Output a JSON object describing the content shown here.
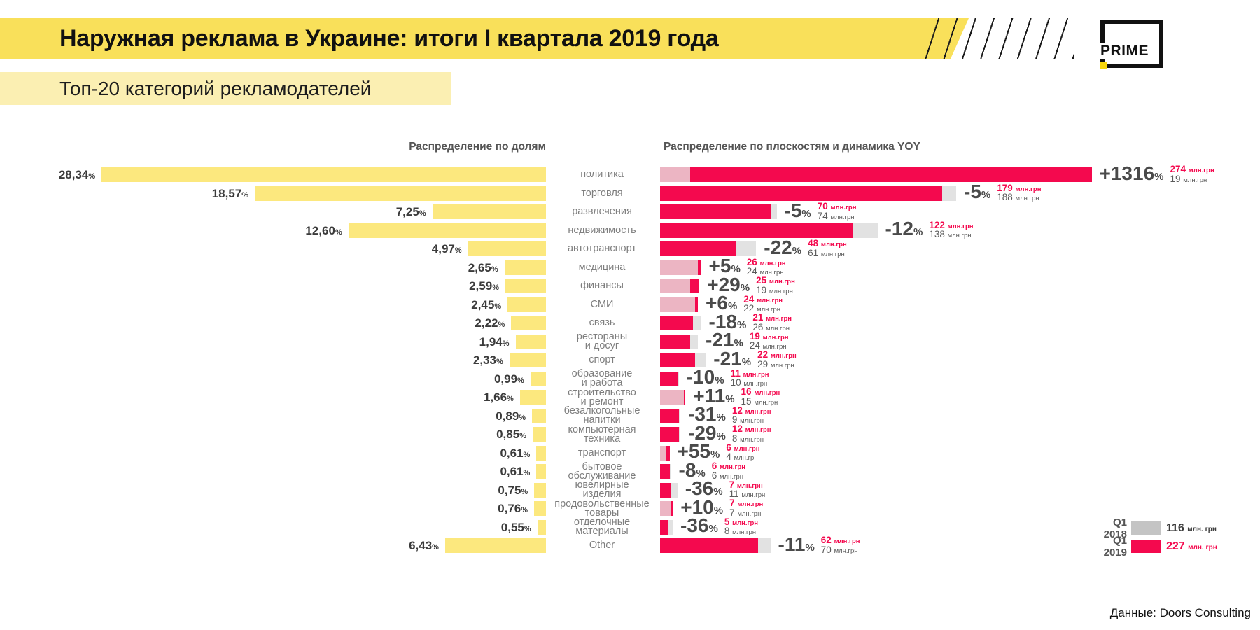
{
  "page": {
    "title": "Наружная реклама в Украине: итоги I квартала 2019 года",
    "subtitle": "Топ-20 категорий рекламодателей",
    "logo": "PRIME",
    "source": "Данные: Doors Consulting"
  },
  "left_chart": {
    "title": "Распределение по долям",
    "pct_suffix": "%"
  },
  "right_chart": {
    "title": "Распределение по плоскостям и динамика YOY",
    "pct_suffix": "%",
    "unit": "млн.грн"
  },
  "legend": {
    "items": [
      {
        "label": "Q1 2018",
        "value": "116",
        "unit": "млн. грн",
        "swatch_color": "#C4C4C4",
        "text_color": "#3d3d3d"
      },
      {
        "label": "Q1 2019",
        "value": "227",
        "unit": "млн. грн",
        "swatch_color": "#F4094E",
        "text_color": "#F4094E"
      }
    ]
  },
  "colors": {
    "yellow_bar": "#FCE87E",
    "red": "#F4094E",
    "pale_pink": "#ECB5C3",
    "gray_tail": "#E2E2E2"
  },
  "chart_data": {
    "type": "bar",
    "title": "Топ-20 категорий рекламодателей",
    "xlabel": "млн.грн / % доля",
    "legend_position": "bottom-right",
    "categories": [
      "политика",
      "торговля",
      "развлечения",
      "недвижимость",
      "автотранспорт",
      "медицина",
      "финансы",
      "СМИ",
      "связь",
      "рестораны и досуг",
      "спорт",
      "образование и работа",
      "строительство и ремонт",
      "безалкогольные напитки",
      "компьютерная техника",
      "транспорт",
      "бытовое обслуживание",
      "ювелирные изделия",
      "продовольственные товары",
      "отделочные материалы",
      "Other"
    ],
    "series": [
      {
        "name": "Доля, %",
        "values": [
          28.34,
          18.57,
          7.25,
          12.6,
          4.97,
          2.65,
          2.59,
          2.45,
          2.22,
          1.94,
          2.33,
          0.99,
          1.66,
          0.89,
          0.85,
          0.61,
          0.61,
          0.75,
          0.76,
          0.55,
          6.43
        ]
      },
      {
        "name": "Q1 2019, млн.грн",
        "values": [
          274,
          179,
          70,
          122,
          48,
          26,
          25,
          24,
          21,
          19,
          22,
          11,
          16,
          12,
          12,
          6,
          6,
          7,
          7,
          5,
          62
        ]
      },
      {
        "name": "Q1 2018, млн.грн",
        "values": [
          19,
          188,
          74,
          138,
          61,
          24,
          19,
          22,
          26,
          24,
          29,
          10,
          15,
          9,
          8,
          4,
          6,
          11,
          7,
          8,
          70
        ]
      },
      {
        "name": "Динамика YOY, %",
        "values": [
          1316,
          -5,
          -5,
          -12,
          -22,
          5,
          29,
          6,
          -18,
          -21,
          -21,
          -10,
          11,
          -31,
          -29,
          55,
          -8,
          -36,
          10,
          -36,
          -11
        ]
      }
    ],
    "rows": [
      {
        "category_lines": [
          "политика"
        ],
        "share_label": "28,34",
        "share": 28.34,
        "yoy_label": "+1316",
        "v2019": 274,
        "v2018": 19,
        "v2019_label": "274",
        "v2018_label": "19"
      },
      {
        "category_lines": [
          "торговля"
        ],
        "share_label": "18,57",
        "share": 18.57,
        "yoy_label": "-5",
        "v2019": 179,
        "v2018": 188,
        "v2019_label": "179",
        "v2018_label": "188"
      },
      {
        "category_lines": [
          "развлечения"
        ],
        "share_label": "7,25",
        "share": 7.25,
        "yoy_label": "-5",
        "v2019": 70,
        "v2018": 74,
        "v2019_label": "70",
        "v2018_label": "74"
      },
      {
        "category_lines": [
          "недвижимость"
        ],
        "share_label": "12,60",
        "share": 12.6,
        "yoy_label": "-12",
        "v2019": 122,
        "v2018": 138,
        "v2019_label": "122",
        "v2018_label": "138"
      },
      {
        "category_lines": [
          "автотранспорт"
        ],
        "share_label": "4,97",
        "share": 4.97,
        "yoy_label": "-22",
        "v2019": 48,
        "v2018": 61,
        "v2019_label": "48",
        "v2018_label": "61"
      },
      {
        "category_lines": [
          "медицина"
        ],
        "share_label": "2,65",
        "share": 2.65,
        "yoy_label": "+5",
        "v2019": 26,
        "v2018": 24,
        "v2019_label": "26",
        "v2018_label": "24"
      },
      {
        "category_lines": [
          "финансы"
        ],
        "share_label": "2,59",
        "share": 2.59,
        "yoy_label": "+29",
        "v2019": 25,
        "v2018": 19,
        "v2019_label": "25",
        "v2018_label": "19"
      },
      {
        "category_lines": [
          "СМИ"
        ],
        "share_label": "2,45",
        "share": 2.45,
        "yoy_label": "+6",
        "v2019": 24,
        "v2018": 22,
        "v2019_label": "24",
        "v2018_label": "22"
      },
      {
        "category_lines": [
          "связь"
        ],
        "share_label": "2,22",
        "share": 2.22,
        "yoy_label": "-18",
        "v2019": 21,
        "v2018": 26,
        "v2019_label": "21",
        "v2018_label": "26"
      },
      {
        "category_lines": [
          "рестораны",
          "и досуг"
        ],
        "share_label": "1,94",
        "share": 1.94,
        "yoy_label": "-21",
        "v2019": 19,
        "v2018": 24,
        "v2019_label": "19",
        "v2018_label": "24"
      },
      {
        "category_lines": [
          "спорт"
        ],
        "share_label": "2,33",
        "share": 2.33,
        "yoy_label": "-21",
        "v2019": 22,
        "v2018": 29,
        "v2019_label": "22",
        "v2018_label": "29"
      },
      {
        "category_lines": [
          "образование",
          "и работа"
        ],
        "share_label": "0,99",
        "share": 0.99,
        "yoy_label": "-10",
        "v2019": 11,
        "v2018": 10,
        "v2019_label": "11",
        "v2018_label": "10"
      },
      {
        "category_lines": [
          "строительство",
          "и ремонт"
        ],
        "share_label": "1,66",
        "share": 1.66,
        "yoy_label": "+11",
        "v2019": 16,
        "v2018": 15,
        "v2019_label": "16",
        "v2018_label": "15"
      },
      {
        "category_lines": [
          "безалкогольные",
          "напитки"
        ],
        "share_label": "0,89",
        "share": 0.89,
        "yoy_label": "-31",
        "v2019": 12,
        "v2018": 9,
        "v2019_label": "12",
        "v2018_label": "9"
      },
      {
        "category_lines": [
          "компьютерная",
          "техника"
        ],
        "share_label": "0,85",
        "share": 0.85,
        "yoy_label": "-29",
        "v2019": 12,
        "v2018": 8,
        "v2019_label": "12",
        "v2018_label": "8"
      },
      {
        "category_lines": [
          "транспорт"
        ],
        "share_label": "0,61",
        "share": 0.61,
        "yoy_label": "+55",
        "v2019": 6,
        "v2018": 4,
        "v2019_label": "6",
        "v2018_label": "4"
      },
      {
        "category_lines": [
          "бытовое",
          "обслуживание"
        ],
        "share_label": "0,61",
        "share": 0.61,
        "yoy_label": "-8",
        "v2019": 6,
        "v2018": 6,
        "v2019_label": "6",
        "v2018_label": "6"
      },
      {
        "category_lines": [
          "ювелирные",
          "изделия"
        ],
        "share_label": "0,75",
        "share": 0.75,
        "yoy_label": "-36",
        "v2019": 7,
        "v2018": 11,
        "v2019_label": "7",
        "v2018_label": "11"
      },
      {
        "category_lines": [
          "продовольственные",
          "товары"
        ],
        "share_label": "0,76",
        "share": 0.76,
        "yoy_label": "+10",
        "v2019": 7,
        "v2018": 7,
        "v2019_label": "7",
        "v2018_label": "7"
      },
      {
        "category_lines": [
          "отделочные",
          "материалы"
        ],
        "share_label": "0,55",
        "share": 0.55,
        "yoy_label": "-36",
        "v2019": 5,
        "v2018": 8,
        "v2019_label": "5",
        "v2018_label": "8"
      },
      {
        "category_lines": [
          "Other"
        ],
        "share_label": "6,43",
        "share": 6.43,
        "yoy_label": "-11",
        "v2019": 62,
        "v2018": 70,
        "v2019_label": "62",
        "v2018_label": "70"
      }
    ]
  }
}
